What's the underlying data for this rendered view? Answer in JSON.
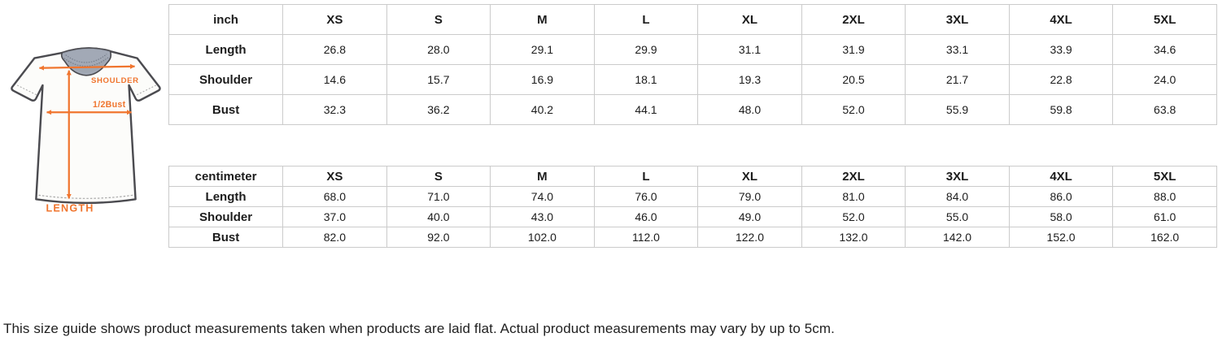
{
  "diagram": {
    "shoulder_label": "SHOULDER",
    "bust_label": "1/2Bust",
    "length_label": "LENGTH",
    "arrow_color": "#f0752e"
  },
  "size_tables": [
    {
      "unit": "inch",
      "sizes": [
        "XS",
        "S",
        "M",
        "L",
        "XL",
        "2XL",
        "3XL",
        "4XL",
        "5XL"
      ],
      "rows": [
        {
          "label": "Length",
          "values": [
            "26.8",
            "28.0",
            "29.1",
            "29.9",
            "31.1",
            "31.9",
            "33.1",
            "33.9",
            "34.6"
          ]
        },
        {
          "label": "Shoulder",
          "values": [
            "14.6",
            "15.7",
            "16.9",
            "18.1",
            "19.3",
            "20.5",
            "21.7",
            "22.8",
            "24.0"
          ]
        },
        {
          "label": "Bust",
          "values": [
            "32.3",
            "36.2",
            "40.2",
            "44.1",
            "48.0",
            "52.0",
            "55.9",
            "59.8",
            "63.8"
          ]
        }
      ]
    },
    {
      "unit": "centimeter",
      "sizes": [
        "XS",
        "S",
        "M",
        "L",
        "XL",
        "2XL",
        "3XL",
        "4XL",
        "5XL"
      ],
      "rows": [
        {
          "label": "Length",
          "values": [
            "68.0",
            "71.0",
            "74.0",
            "76.0",
            "79.0",
            "81.0",
            "84.0",
            "86.0",
            "88.0"
          ]
        },
        {
          "label": "Shoulder",
          "values": [
            "37.0",
            "40.0",
            "43.0",
            "46.0",
            "49.0",
            "52.0",
            "55.0",
            "58.0",
            "61.0"
          ]
        },
        {
          "label": "Bust",
          "values": [
            "82.0",
            "92.0",
            "102.0",
            "112.0",
            "122.0",
            "132.0",
            "142.0",
            "152.0",
            "162.0"
          ]
        }
      ]
    }
  ],
  "footer_note": "This size guide shows product measurements taken when products are laid flat. Actual product measurements may vary by up to 5cm."
}
